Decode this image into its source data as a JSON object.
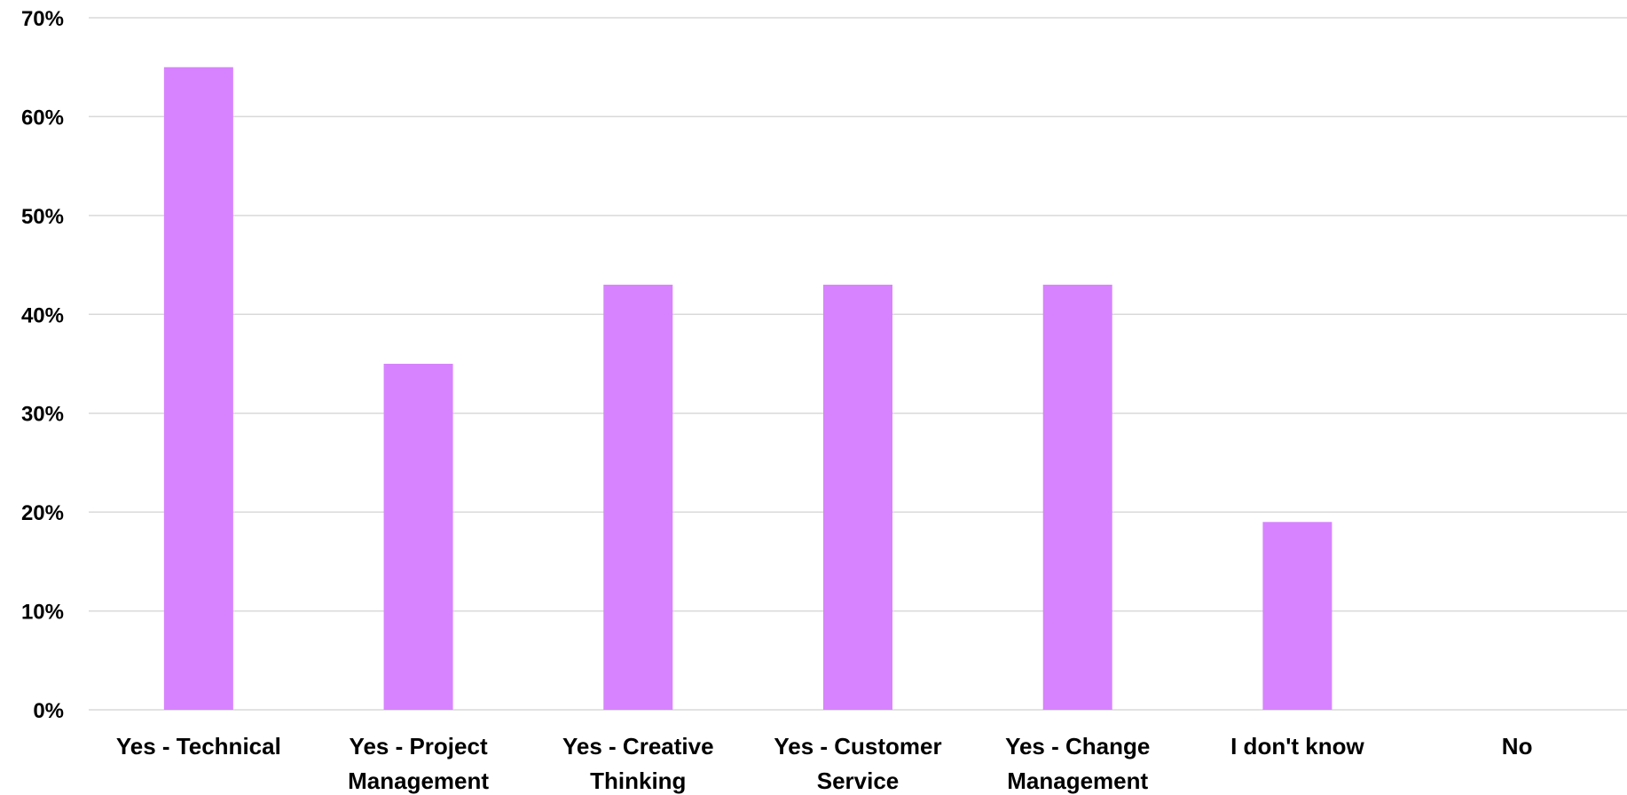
{
  "chart_data": {
    "type": "bar",
    "title": "",
    "xlabel": "",
    "ylabel": "",
    "categories": [
      [
        "Yes - Technical"
      ],
      [
        "Yes - Project",
        "Management"
      ],
      [
        "Yes - Creative",
        "Thinking"
      ],
      [
        "Yes - Customer",
        "Service"
      ],
      [
        "Yes - Change",
        "Management"
      ],
      [
        "I don't know"
      ],
      [
        "No"
      ]
    ],
    "values": [
      65,
      35,
      43,
      43,
      43,
      19,
      0
    ],
    "ylim": [
      0,
      70
    ],
    "yticks": [
      0,
      10,
      20,
      30,
      40,
      50,
      60,
      70
    ],
    "ytick_format": "percent",
    "grid": true,
    "legend": "none",
    "colors": {
      "bar": "#d783ff",
      "grid": "#d9d9d9",
      "text": "#000000"
    }
  }
}
